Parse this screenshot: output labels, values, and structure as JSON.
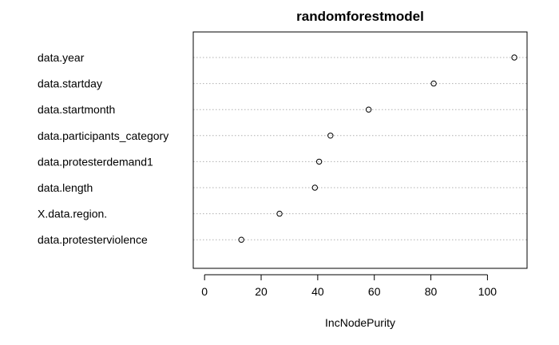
{
  "chart_data": {
    "type": "scatter",
    "title": "randomforestmodel",
    "xlabel": "IncNodePurity",
    "ylabel": "",
    "categories": [
      "data.year",
      "data.startday",
      "data.startmonth",
      "data.participants_category",
      "data.protesterdemand1",
      "data.length",
      "X.data.region.",
      "data.protesterviolence"
    ],
    "values": [
      109.5,
      81,
      58,
      44.5,
      40.5,
      39,
      26.5,
      13
    ],
    "xlim": [
      -4,
      114
    ],
    "xticks": [
      "0",
      "20",
      "40",
      "60",
      "80",
      "100"
    ],
    "grid": true,
    "legend": "none"
  }
}
